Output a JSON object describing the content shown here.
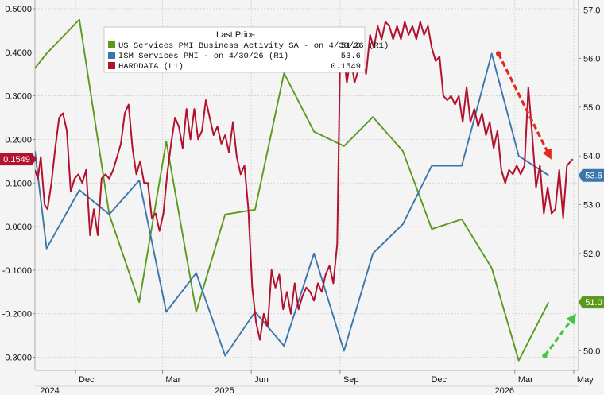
{
  "chart_data": {
    "type": "line",
    "legend": {
      "title": "Last Price",
      "placement": "top-center",
      "entries": [
        {
          "label": "US Services PMI Business Activity SA - on 4/30/26 (R1)",
          "value": "51.0",
          "color": "#5b9a1c"
        },
        {
          "label": "ISM Services PMI - on 4/30/26 (R1)",
          "value": "53.6",
          "color": "#3b76aa"
        },
        {
          "label": "HARDDATA (L1)",
          "value": "0.1549",
          "color": "#b2122e"
        }
      ]
    },
    "left_axis": {
      "ylim": [
        -0.33,
        0.52
      ],
      "ticks": [
        "0.5000",
        "0.4000",
        "0.3000",
        "0.2000",
        "0.1000",
        "0.0000",
        "-0.1000",
        "-0.2000",
        "-0.3000"
      ],
      "tick_values": [
        0.5,
        0.4,
        0.3,
        0.2,
        0.1,
        0.0,
        -0.1,
        -0.2,
        -0.3
      ]
    },
    "right_axis": {
      "ylim": [
        49.6,
        57.2
      ],
      "ticks": [
        "57.0",
        "56.0",
        "55.0",
        "54.0",
        "53.0",
        "52.0",
        "51.0",
        "50.0"
      ],
      "tick_values": [
        57,
        56,
        55,
        54,
        53,
        52,
        51,
        50
      ]
    },
    "x_axis": {
      "xlim": [
        "2024-10-20",
        "2026-05-06"
      ],
      "month_ticks": [
        {
          "label": "Dec",
          "date": "2024-12-01"
        },
        {
          "label": "Mar",
          "date": "2025-03-01"
        },
        {
          "label": "Jun",
          "date": "2025-06-01"
        },
        {
          "label": "Sep",
          "date": "2025-09-01"
        },
        {
          "label": "Dec",
          "date": "2025-12-01"
        },
        {
          "label": "Mar",
          "date": "2026-03-01"
        },
        {
          "label": "May",
          "date": "2026-05-01"
        }
      ],
      "year_labels": [
        {
          "label": "2024",
          "date": "2024-11-01"
        },
        {
          "label": "2025",
          "date": "2025-05-01"
        },
        {
          "label": "2026",
          "date": "2026-02-15"
        }
      ]
    },
    "grid": true,
    "last_value_tags": [
      {
        "text": "0.1549",
        "axis": "left",
        "value": 0.1549,
        "color": "#b2122e"
      },
      {
        "text": "53.6",
        "axis": "right",
        "value": 53.6,
        "color": "#3b76aa"
      },
      {
        "text": "51.0",
        "axis": "right",
        "value": 51.0,
        "color": "#5b9a1c"
      }
    ],
    "series": [
      {
        "name": "US Services PMI Business Activity SA",
        "axis": "right",
        "color": "#5b9a1c",
        "points": [
          [
            "2024-10-20",
            55.8
          ],
          [
            "2024-11-01",
            56.1
          ],
          [
            "2024-12-05",
            56.8
          ],
          [
            "2025-01-05",
            52.8
          ],
          [
            "2025-02-05",
            51.0
          ],
          [
            "2025-03-05",
            54.3
          ],
          [
            "2025-04-05",
            50.8
          ],
          [
            "2025-05-05",
            52.8
          ],
          [
            "2025-06-05",
            52.9
          ],
          [
            "2025-07-05",
            55.7
          ],
          [
            "2025-08-05",
            54.5
          ],
          [
            "2025-09-05",
            54.2
          ],
          [
            "2025-10-05",
            54.8
          ],
          [
            "2025-11-05",
            54.1
          ],
          [
            "2025-12-05",
            52.5
          ],
          [
            "2026-01-05",
            52.7
          ],
          [
            "2026-02-05",
            51.7
          ],
          [
            "2026-03-05",
            49.8
          ],
          [
            "2026-04-05",
            51.0
          ]
        ]
      },
      {
        "name": "ISM Services PMI",
        "axis": "right",
        "color": "#3b76aa",
        "points": [
          [
            "2024-10-20",
            54.1
          ],
          [
            "2024-11-01",
            52.1
          ],
          [
            "2024-12-05",
            53.3
          ],
          [
            "2025-01-05",
            52.8
          ],
          [
            "2025-02-05",
            53.5
          ],
          [
            "2025-03-05",
            50.8
          ],
          [
            "2025-04-05",
            51.6
          ],
          [
            "2025-05-05",
            49.9
          ],
          [
            "2025-06-05",
            50.8
          ],
          [
            "2025-07-05",
            50.1
          ],
          [
            "2025-08-05",
            52.0
          ],
          [
            "2025-09-05",
            50.0
          ],
          [
            "2025-10-05",
            52.0
          ],
          [
            "2025-11-05",
            52.6
          ],
          [
            "2025-12-05",
            53.8
          ],
          [
            "2026-01-05",
            53.8
          ],
          [
            "2026-02-05",
            56.1
          ],
          [
            "2026-03-05",
            54.0
          ],
          [
            "2026-04-05",
            53.6
          ]
        ]
      },
      {
        "name": "HARDDATA",
        "axis": "left",
        "color": "#b2122e",
        "points": [
          [
            "2024-10-20",
            0.13
          ],
          [
            "2024-10-23",
            0.11
          ],
          [
            "2024-10-26",
            0.16
          ],
          [
            "2024-10-30",
            0.05
          ],
          [
            "2024-11-02",
            0.04
          ],
          [
            "2024-11-06",
            0.1
          ],
          [
            "2024-11-10",
            0.18
          ],
          [
            "2024-11-14",
            0.25
          ],
          [
            "2024-11-18",
            0.26
          ],
          [
            "2024-11-22",
            0.22
          ],
          [
            "2024-11-26",
            0.08
          ],
          [
            "2024-11-30",
            0.11
          ],
          [
            "2024-12-04",
            0.12
          ],
          [
            "2024-12-08",
            0.1
          ],
          [
            "2024-12-12",
            0.13
          ],
          [
            "2024-12-16",
            -0.02
          ],
          [
            "2024-12-20",
            0.04
          ],
          [
            "2024-12-24",
            -0.02
          ],
          [
            "2024-12-28",
            0.11
          ],
          [
            "2025-01-01",
            0.12
          ],
          [
            "2025-01-05",
            0.11
          ],
          [
            "2025-01-09",
            0.13
          ],
          [
            "2025-01-13",
            0.16
          ],
          [
            "2025-01-17",
            0.19
          ],
          [
            "2025-01-21",
            0.26
          ],
          [
            "2025-01-25",
            0.28
          ],
          [
            "2025-01-29",
            0.18
          ],
          [
            "2025-02-02",
            0.12
          ],
          [
            "2025-02-06",
            0.15
          ],
          [
            "2025-02-10",
            0.1
          ],
          [
            "2025-02-14",
            0.1
          ],
          [
            "2025-02-18",
            0.02
          ],
          [
            "2025-02-22",
            0.03
          ],
          [
            "2025-02-26",
            -0.01
          ],
          [
            "2025-03-02",
            0.03
          ],
          [
            "2025-03-06",
            0.12
          ],
          [
            "2025-03-10",
            0.19
          ],
          [
            "2025-03-14",
            0.25
          ],
          [
            "2025-03-18",
            0.23
          ],
          [
            "2025-03-22",
            0.18
          ],
          [
            "2025-03-26",
            0.27
          ],
          [
            "2025-03-30",
            0.2
          ],
          [
            "2025-04-03",
            0.27
          ],
          [
            "2025-04-07",
            0.2
          ],
          [
            "2025-04-11",
            0.22
          ],
          [
            "2025-04-15",
            0.29
          ],
          [
            "2025-04-19",
            0.25
          ],
          [
            "2025-04-23",
            0.21
          ],
          [
            "2025-04-27",
            0.23
          ],
          [
            "2025-05-01",
            0.19
          ],
          [
            "2025-05-05",
            0.21
          ],
          [
            "2025-05-09",
            0.17
          ],
          [
            "2025-05-13",
            0.24
          ],
          [
            "2025-05-17",
            0.16
          ],
          [
            "2025-05-21",
            0.12
          ],
          [
            "2025-05-25",
            0.14
          ],
          [
            "2025-05-29",
            0.04
          ],
          [
            "2025-06-02",
            -0.14
          ],
          [
            "2025-06-06",
            -0.22
          ],
          [
            "2025-06-10",
            -0.26
          ],
          [
            "2025-06-14",
            -0.2
          ],
          [
            "2025-06-18",
            -0.23
          ],
          [
            "2025-06-22",
            -0.1
          ],
          [
            "2025-06-26",
            -0.14
          ],
          [
            "2025-06-30",
            -0.11
          ],
          [
            "2025-07-04",
            -0.19
          ],
          [
            "2025-07-08",
            -0.15
          ],
          [
            "2025-07-12",
            -0.2
          ],
          [
            "2025-07-16",
            -0.13
          ],
          [
            "2025-07-20",
            -0.19
          ],
          [
            "2025-07-24",
            -0.16
          ],
          [
            "2025-07-28",
            -0.14
          ],
          [
            "2025-08-01",
            -0.15
          ],
          [
            "2025-08-05",
            -0.17
          ],
          [
            "2025-08-09",
            -0.13
          ],
          [
            "2025-08-13",
            -0.15
          ],
          [
            "2025-08-17",
            -0.11
          ],
          [
            "2025-08-21",
            -0.09
          ],
          [
            "2025-08-25",
            -0.13
          ],
          [
            "2025-08-29",
            -0.04
          ],
          [
            "2025-09-01",
            0.38
          ],
          [
            "2025-09-04",
            0.41
          ],
          [
            "2025-09-08",
            0.33
          ],
          [
            "2025-09-12",
            0.39
          ],
          [
            "2025-09-16",
            0.33
          ],
          [
            "2025-09-20",
            0.36
          ],
          [
            "2025-09-24",
            0.38
          ],
          [
            "2025-09-28",
            0.35
          ],
          [
            "2025-10-02",
            0.44
          ],
          [
            "2025-10-06",
            0.41
          ],
          [
            "2025-10-10",
            0.46
          ],
          [
            "2025-10-14",
            0.43
          ],
          [
            "2025-10-18",
            0.47
          ],
          [
            "2025-10-22",
            0.46
          ],
          [
            "2025-10-26",
            0.43
          ],
          [
            "2025-10-30",
            0.46
          ],
          [
            "2025-11-03",
            0.43
          ],
          [
            "2025-11-07",
            0.47
          ],
          [
            "2025-11-11",
            0.44
          ],
          [
            "2025-11-15",
            0.46
          ],
          [
            "2025-11-19",
            0.43
          ],
          [
            "2025-11-23",
            0.47
          ],
          [
            "2025-11-27",
            0.44
          ],
          [
            "2025-12-01",
            0.46
          ],
          [
            "2025-12-05",
            0.41
          ],
          [
            "2025-12-09",
            0.38
          ],
          [
            "2025-12-13",
            0.39
          ],
          [
            "2025-12-17",
            0.3
          ],
          [
            "2025-12-21",
            0.29
          ],
          [
            "2025-12-25",
            0.3
          ],
          [
            "2025-12-29",
            0.28
          ],
          [
            "2026-01-02",
            0.3
          ],
          [
            "2026-01-06",
            0.24
          ],
          [
            "2026-01-10",
            0.32
          ],
          [
            "2026-01-14",
            0.24
          ],
          [
            "2026-01-18",
            0.27
          ],
          [
            "2026-01-22",
            0.23
          ],
          [
            "2026-01-26",
            0.26
          ],
          [
            "2026-01-30",
            0.21
          ],
          [
            "2026-02-03",
            0.24
          ],
          [
            "2026-02-07",
            0.18
          ],
          [
            "2026-02-11",
            0.22
          ],
          [
            "2026-02-15",
            0.13
          ],
          [
            "2026-02-19",
            0.1
          ],
          [
            "2026-02-23",
            0.13
          ],
          [
            "2026-02-27",
            0.12
          ],
          [
            "2026-03-03",
            0.14
          ],
          [
            "2026-03-07",
            0.12
          ],
          [
            "2026-03-11",
            0.14
          ],
          [
            "2026-03-15",
            0.32
          ],
          [
            "2026-03-19",
            0.21
          ],
          [
            "2026-03-23",
            0.09
          ],
          [
            "2026-03-27",
            0.14
          ],
          [
            "2026-03-31",
            0.03
          ],
          [
            "2026-04-04",
            0.09
          ],
          [
            "2026-04-08",
            0.03
          ],
          [
            "2026-04-12",
            0.04
          ],
          [
            "2026-04-16",
            0.13
          ],
          [
            "2026-04-20",
            0.02
          ],
          [
            "2026-04-24",
            0.14
          ],
          [
            "2026-04-28",
            0.15
          ],
          [
            "2026-04-30",
            0.1549
          ]
        ]
      }
    ],
    "annotations": [
      {
        "type": "arrow",
        "style": "dashed",
        "color": "#e02a1c",
        "from": [
          "2026-02-12",
          56.1
        ],
        "to": [
          "2026-04-06",
          54.0
        ],
        "axis": "right"
      },
      {
        "type": "arrow",
        "style": "dashed",
        "color": "#47c443",
        "from": [
          "2026-04-01",
          49.9
        ],
        "to": [
          "2026-05-01",
          50.7
        ],
        "axis": "right"
      }
    ]
  }
}
